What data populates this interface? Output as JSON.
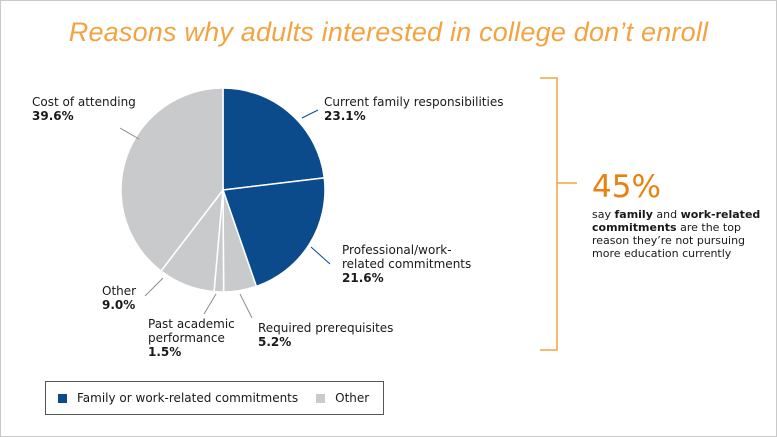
{
  "title": "Reasons why adults interested in college don’t enroll",
  "chart_data": {
    "type": "pie",
    "title": "Reasons why adults interested in college don’t enroll",
    "slices": [
      {
        "label": "Current family responsibilities",
        "value": 23.1,
        "value_label": "23.1%",
        "group": "Family or work-related commitments",
        "color": "#0b4a8b"
      },
      {
        "label": "Professional/work-related commitments",
        "value": 21.6,
        "value_label": "21.6%",
        "group": "Family or work-related commitments",
        "color": "#0b4a8b"
      },
      {
        "label": "Required prerequisites",
        "value": 5.2,
        "value_label": "5.2%",
        "group": "Other",
        "color": "#c8cacc"
      },
      {
        "label": "Past academic performance",
        "value": 1.5,
        "value_label": "1.5%",
        "group": "Other",
        "color": "#c8cacc"
      },
      {
        "label": "Other",
        "value": 9.0,
        "value_label": "9.0%",
        "group": "Other",
        "color": "#c8cacc"
      },
      {
        "label": "Cost of attending",
        "value": 39.6,
        "value_label": "39.6%",
        "group": "Other",
        "color": "#c8cacc"
      }
    ],
    "legend": [
      {
        "label": "Family or work-related commitments",
        "color": "#0b4a8b"
      },
      {
        "label": "Other",
        "color": "#c8cacc"
      }
    ],
    "legend_position": "bottom-left"
  },
  "labels": {
    "family_l1": "Current family responsibilities",
    "family_pct": "23.1%",
    "work_l1": "Professional/work-",
    "work_l2": "related commitments",
    "work_pct": "21.6%",
    "prereq_l1": "Required prerequisites",
    "prereq_pct": "5.2%",
    "past_l1": "Past academic",
    "past_l2": "performance",
    "past_pct": "1.5%",
    "other_l1": "Other",
    "other_pct": "9.0%",
    "cost_l1": "Cost of attending",
    "cost_pct": "39.6%"
  },
  "callout": {
    "stat": "45%",
    "t1": "say ",
    "b1": "family",
    "t2": " and ",
    "b2": "work-related commitments",
    "t3": " are the top reason they’re not pursuing more education currently"
  },
  "legend": {
    "item1": "Family or work-related commitments",
    "item2": "Other"
  },
  "colors": {
    "navy": "#0b4a8b",
    "gray": "#c8cacc",
    "orange": "#e8820e",
    "title": "#f4a340"
  }
}
